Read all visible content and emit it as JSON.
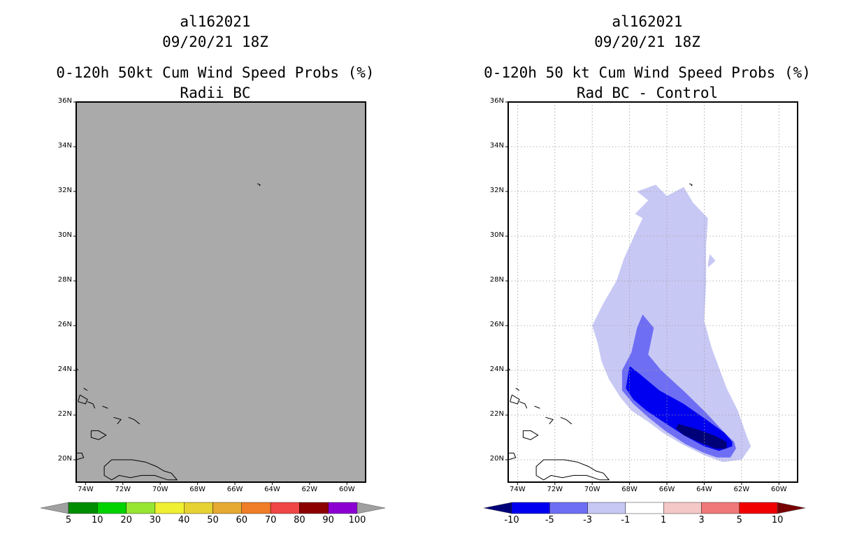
{
  "left_panel": {
    "title_lines": [
      "al162021",
      "09/20/21 18Z",
      "0-120h 50kt Cum Wind Speed Probs (%)",
      "Radii BC"
    ],
    "lat_labels": [
      "36N",
      "34N",
      "32N",
      "30N",
      "28N",
      "26N",
      "24N",
      "22N",
      "20N"
    ],
    "lon_labels": [
      "74W",
      "72W",
      "70W",
      "68W",
      "66W",
      "64W",
      "62W",
      "60W"
    ],
    "fill_color": "#aaaaaa",
    "colorbar": {
      "labels": [
        "5",
        "10",
        "20",
        "30",
        "40",
        "50",
        "60",
        "70",
        "80",
        "90",
        "100"
      ],
      "colors": [
        "#008c00",
        "#00d200",
        "#96e632",
        "#f0f032",
        "#e6d232",
        "#e6aa32",
        "#f07d28",
        "#f04646",
        "#8c0000",
        "#8c00d2"
      ],
      "end_color": "#a0a0a0"
    }
  },
  "right_panel": {
    "title_lines": [
      "al162021",
      "09/20/21 18Z",
      "0-120h 50 kt Cum Wind Speed Probs (%)",
      "Rad BC - Control"
    ],
    "lat_labels": [
      "36N",
      "34N",
      "32N",
      "30N",
      "28N",
      "26N",
      "24N",
      "22N",
      "20N"
    ],
    "lon_labels": [
      "74W",
      "72W",
      "70W",
      "68W",
      "66W",
      "64W",
      "62W",
      "60W"
    ],
    "colorbar": {
      "labels": [
        "-10",
        "-5",
        "-3",
        "-1",
        "1",
        "3",
        "5",
        "10"
      ],
      "colors": [
        "#0000f0",
        "#6e6ef5",
        "#c8c8f5",
        "#ffffff",
        "#f5c8c8",
        "#f07878",
        "#f00000"
      ],
      "low_end_color": "#000078",
      "high_end_color": "#780000"
    }
  },
  "map_extent": {
    "lon_min": -74.5,
    "lon_max": -59,
    "lat_min": 19,
    "lat_max": 36
  },
  "chart_data": {
    "type": "heatmap",
    "title": "0-120h 50 kt Cum Wind Speed Probs (%) — Rad BC - Control",
    "contour_levels": [
      -10,
      -5,
      -3,
      -1,
      1,
      3,
      5,
      10
    ],
    "lon_ticks": [
      -74,
      -72,
      -70,
      -68,
      -66,
      -64,
      -62,
      -60
    ],
    "lat_ticks": [
      20,
      22,
      24,
      26,
      28,
      30,
      32,
      34,
      36
    ],
    "regions": [
      {
        "name": "-3 to -1",
        "lonlat": [
          [
            -65.1,
            32.2
          ],
          [
            -64.6,
            31.5
          ],
          [
            -63.8,
            30.8
          ],
          [
            -63.9,
            29.6
          ],
          [
            -63.9,
            27.9
          ],
          [
            -64.0,
            26.2
          ],
          [
            -63.6,
            25.0
          ],
          [
            -62.8,
            23.2
          ],
          [
            -62.2,
            22.2
          ],
          [
            -61.7,
            21.0
          ],
          [
            -61.5,
            20.6
          ],
          [
            -62.0,
            20.0
          ],
          [
            -63.0,
            19.9
          ],
          [
            -64.0,
            20.2
          ],
          [
            -65.2,
            20.7
          ],
          [
            -66.2,
            21.2
          ],
          [
            -67.0,
            21.7
          ],
          [
            -67.9,
            22.2
          ],
          [
            -68.5,
            22.8
          ],
          [
            -69.1,
            23.6
          ],
          [
            -69.5,
            24.4
          ],
          [
            -69.7,
            25.2
          ],
          [
            -70.0,
            26.0
          ],
          [
            -69.4,
            27.0
          ],
          [
            -68.7,
            28.0
          ],
          [
            -68.3,
            29.0
          ],
          [
            -67.7,
            30.1
          ],
          [
            -67.3,
            30.8
          ],
          [
            -67.7,
            31.0
          ],
          [
            -67.0,
            31.6
          ],
          [
            -67.6,
            32.0
          ],
          [
            -66.6,
            32.3
          ],
          [
            -66.0,
            31.8
          ]
        ]
      },
      {
        "name": "-3 to -1 (island)",
        "lonlat": [
          [
            -63.7,
            29.2
          ],
          [
            -63.4,
            28.9
          ],
          [
            -63.8,
            28.6
          ],
          [
            -63.8,
            28.8
          ]
        ]
      },
      {
        "name": "-5 to -3",
        "lonlat": [
          [
            -67.3,
            26.5
          ],
          [
            -66.7,
            25.9
          ],
          [
            -67.0,
            24.7
          ],
          [
            -66.3,
            24.0
          ],
          [
            -65.0,
            23.0
          ],
          [
            -63.9,
            22.1
          ],
          [
            -62.9,
            21.2
          ],
          [
            -62.4,
            20.8
          ],
          [
            -62.3,
            20.5
          ],
          [
            -62.6,
            20.1
          ],
          [
            -63.3,
            20.1
          ],
          [
            -64.0,
            20.3
          ],
          [
            -65.0,
            20.7
          ],
          [
            -66.1,
            21.3
          ],
          [
            -67.0,
            21.9
          ],
          [
            -67.8,
            22.5
          ],
          [
            -68.4,
            23.1
          ],
          [
            -68.4,
            24.0
          ],
          [
            -67.9,
            24.8
          ],
          [
            -67.6,
            25.9
          ]
        ]
      },
      {
        "name": "-10 to -5",
        "lonlat": [
          [
            -68.0,
            24.2
          ],
          [
            -67.4,
            23.8
          ],
          [
            -66.4,
            23.1
          ],
          [
            -65.1,
            22.5
          ],
          [
            -63.9,
            21.8
          ],
          [
            -62.9,
            21.2
          ],
          [
            -62.5,
            20.8
          ],
          [
            -62.5,
            20.6
          ],
          [
            -63.2,
            20.4
          ],
          [
            -64.0,
            20.6
          ],
          [
            -65.1,
            21.1
          ],
          [
            -66.2,
            21.7
          ],
          [
            -67.1,
            22.2
          ],
          [
            -67.8,
            22.7
          ],
          [
            -68.2,
            23.2
          ]
        ]
      },
      {
        "name": "below -10",
        "lonlat": [
          [
            -65.4,
            21.6
          ],
          [
            -64.5,
            21.4
          ],
          [
            -63.5,
            21.1
          ],
          [
            -62.8,
            20.8
          ],
          [
            -62.8,
            20.5
          ],
          [
            -63.4,
            20.5
          ],
          [
            -64.3,
            20.8
          ],
          [
            -65.1,
            21.1
          ],
          [
            -65.5,
            21.4
          ]
        ]
      }
    ]
  }
}
